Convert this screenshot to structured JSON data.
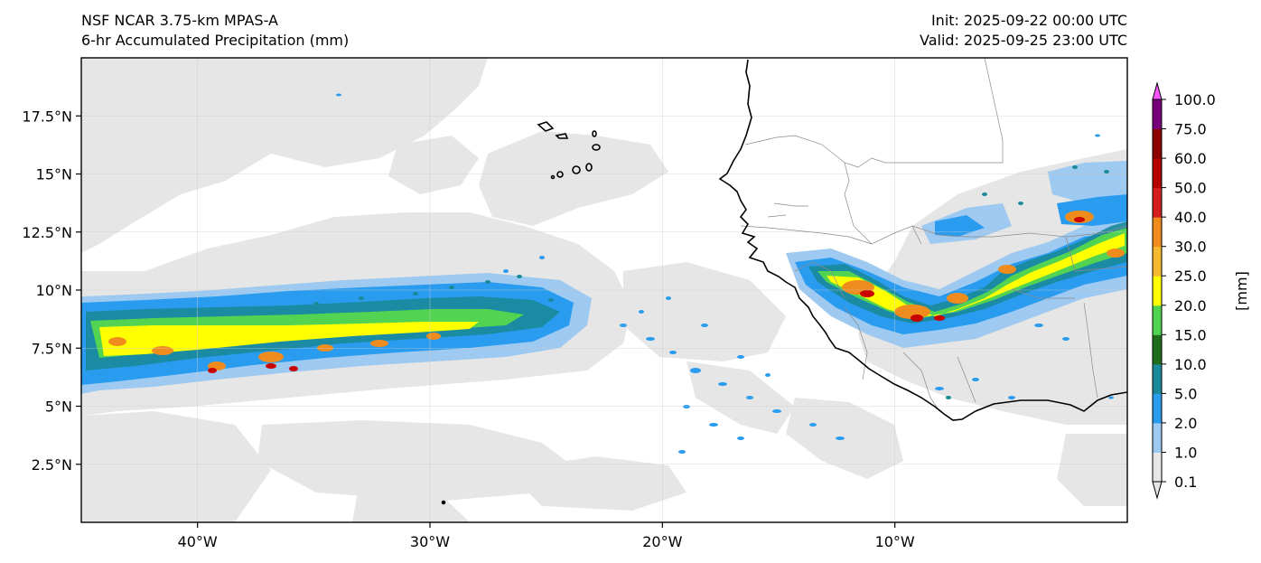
{
  "header": {
    "left_line1": "NSF NCAR 3.75-km MPAS-A",
    "left_line2": "6-hr Accumulated Precipitation (mm)",
    "right_line1": "Init: 2025-09-22 00:00 UTC",
    "right_line2": "Valid: 2025-09-25 23:00 UTC"
  },
  "map": {
    "lon_range": [
      -45,
      0
    ],
    "lat_range": [
      0,
      20
    ],
    "lon_ticks": [
      {
        "value": -40,
        "label": "40°W"
      },
      {
        "value": -30,
        "label": "30°W"
      },
      {
        "value": -20,
        "label": "20°W"
      },
      {
        "value": -10,
        "label": "10°W"
      }
    ],
    "lat_ticks": [
      {
        "value": 2.5,
        "label": "2.5°N"
      },
      {
        "value": 5,
        "label": "5°N"
      },
      {
        "value": 7.5,
        "label": "7.5°N"
      },
      {
        "value": 10,
        "label": "10°N"
      },
      {
        "value": 12.5,
        "label": "12.5°N"
      },
      {
        "value": 15,
        "label": "15°N"
      },
      {
        "value": 17.5,
        "label": "17.5°N"
      }
    ],
    "grid": true,
    "features": [
      "coastline",
      "country-borders",
      "cape-verde-islands"
    ]
  },
  "colorbar": {
    "unit_label": "[mm]",
    "levels": [
      "0.1",
      "1.0",
      "2.0",
      "5.0",
      "10.0",
      "15.0",
      "20.0",
      "25.0",
      "30.0",
      "40.0",
      "50.0",
      "60.0",
      "75.0",
      "100.0"
    ],
    "colors": [
      "#e6e6e6",
      "#9ec9f0",
      "#2a9cf0",
      "#1a8a9a",
      "#1e6e1e",
      "#52d452",
      "#ffff00",
      "#f5b82e",
      "#f08c1e",
      "#d21e1e",
      "#b40000",
      "#8c0000",
      "#780078",
      "#ff55ff"
    ],
    "extend": "both"
  }
}
